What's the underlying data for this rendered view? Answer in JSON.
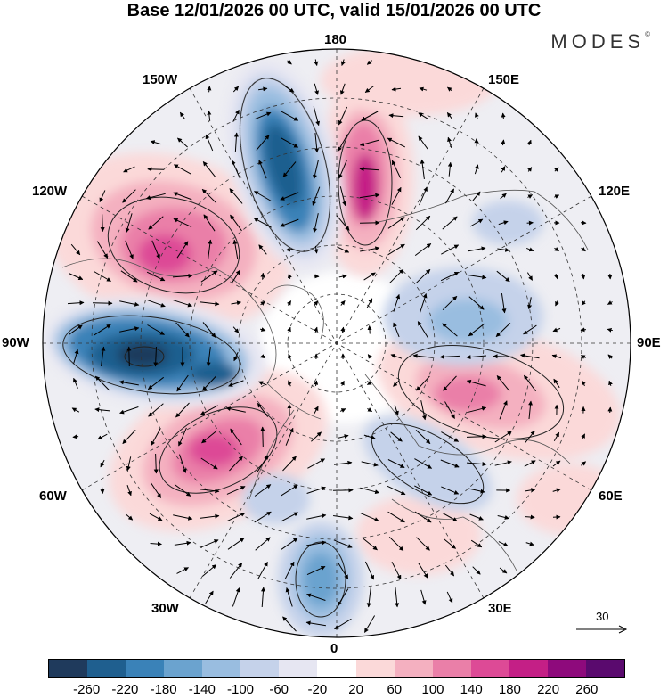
{
  "title": "Base 12/01/2026 00 UTC, valid 15/01/2026 00 UTC",
  "brand": "MODES",
  "brand_mark": "©",
  "lon_labels": {
    "top": "180",
    "bottom": "0",
    "left": "90W",
    "right": "90E",
    "upper_left_1": "150W",
    "upper_left_2": "120W",
    "lower_left_1": "60W",
    "lower_left_2": "30W",
    "upper_right_1": "150E",
    "upper_right_2": "120E",
    "lower_right_1": "60E",
    "lower_right_2": "30E"
  },
  "reference_vector": "30",
  "colorbar": {
    "colors": [
      "#1f3a5c",
      "#1f5f8f",
      "#3a82b8",
      "#6ba3cf",
      "#99bde0",
      "#c5d2ea",
      "#e6e6f2",
      "#ffffff",
      "#fbd9d9",
      "#f4b0c0",
      "#ea7fa8",
      "#dd4a96",
      "#c41f86",
      "#8e0a7c",
      "#5a0a6e"
    ],
    "tick_labels": [
      "-260",
      "-220",
      "-180",
      "-140",
      "-100",
      "-60",
      "-20",
      "20",
      "60",
      "100",
      "140",
      "180",
      "220",
      "260"
    ]
  }
}
